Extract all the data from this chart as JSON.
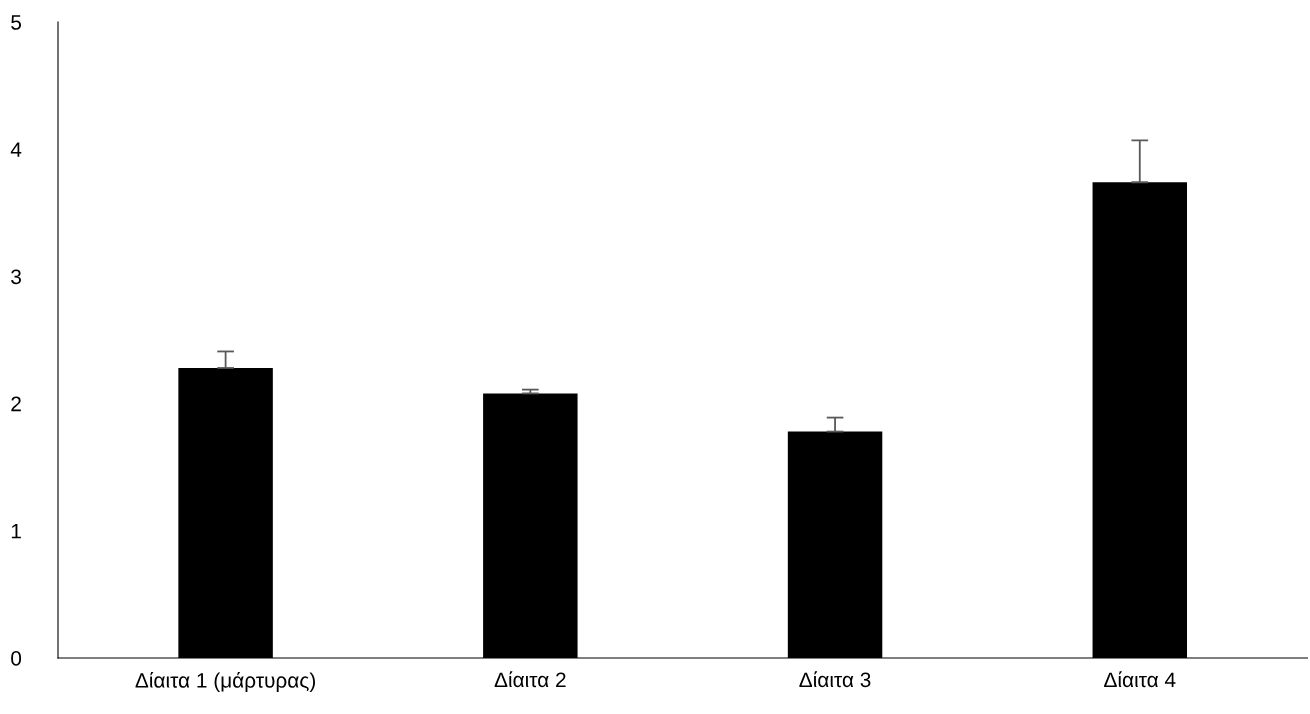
{
  "chart_data": {
    "type": "bar",
    "categories": [
      "Δίαιτα 1 (μάρτυρας)",
      "Δίαιτα 2",
      "Δίαιτα 3",
      "Δίαιτα 4"
    ],
    "values": [
      2.28,
      2.08,
      1.78,
      3.74
    ],
    "errors": [
      [
        2.28,
        2.41
      ],
      [
        2.08,
        2.11
      ],
      [
        1.78,
        1.89
      ],
      [
        3.74,
        4.07
      ]
    ],
    "color": "#000000",
    "ylim": [
      0,
      5
    ],
    "yticks": [
      0,
      1,
      2,
      3,
      4,
      5
    ],
    "grid": false
  }
}
